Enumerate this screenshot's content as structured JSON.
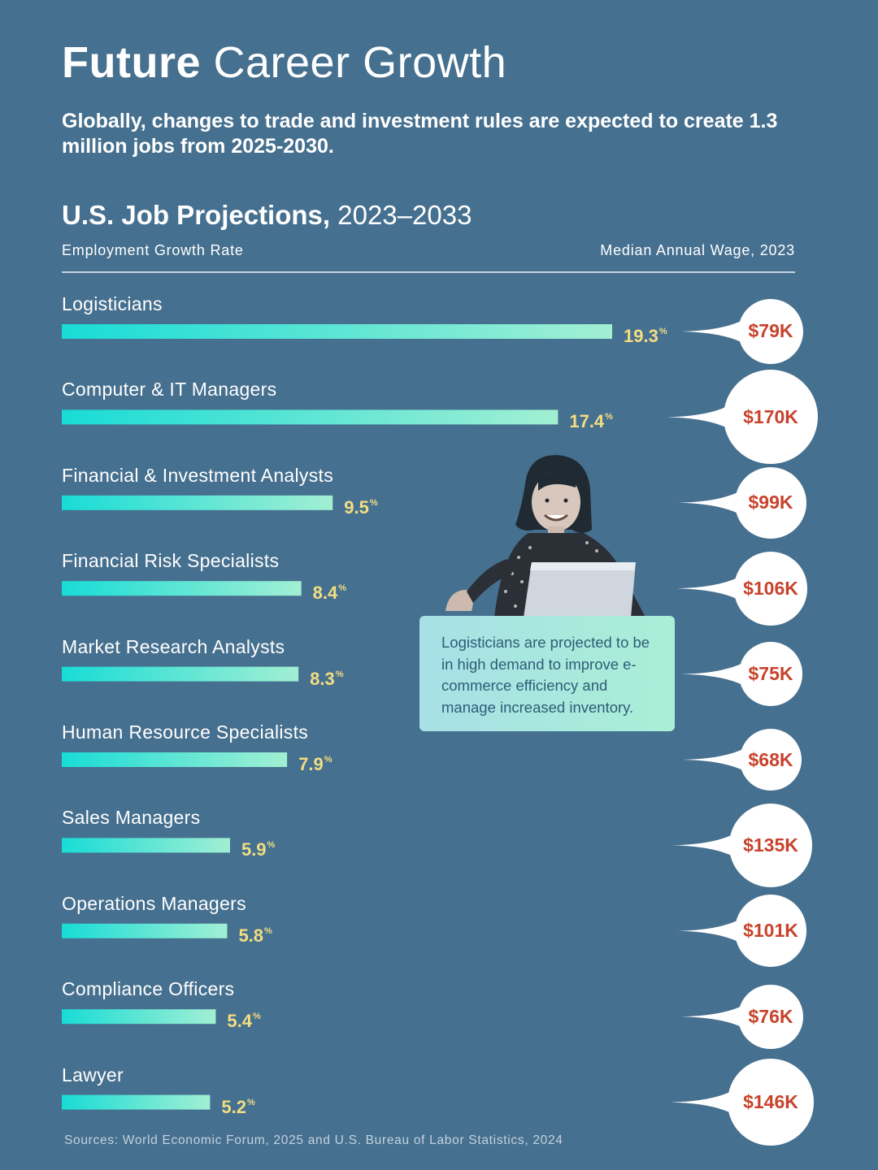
{
  "header": {
    "title_bold": "Future",
    "title_rest": "Career Growth",
    "subtitle": "Globally, changes to trade and investment rules are expected to create 1.3 million jobs from 2025-2030."
  },
  "section": {
    "title_bold": "U.S. Job Projections,",
    "title_years": "2023–2033",
    "left_col_label": "Employment Growth Rate",
    "right_col_label": "Median Annual Wage, 2023"
  },
  "callout": {
    "text": "Logisticians are projected to be in high demand to improve e-commerce efficiency and manage increased inventory."
  },
  "photo": {
    "icon": "woman-with-laptop-photo"
  },
  "source": "Sources: World Economic Forum, 2025 and U.S. Bureau of Labor Statistics, 2024",
  "colors": {
    "background": "#46708f",
    "bar_start": "#18dcd6",
    "bar_end": "#a2efd3",
    "value_text": "#f3dd82",
    "wage_text": "#c8432c"
  },
  "chart_data": {
    "type": "bar",
    "orientation": "horizontal",
    "title": "U.S. Job Projections, 2023–2033",
    "xlabel": "Employment Growth Rate",
    "ylabel": "",
    "unit": "%",
    "categories": [
      "Logisticians",
      "Computer & IT Managers",
      "Financial & Investment Analysts",
      "Financial Risk Specialists",
      "Market Research Analysts",
      "Human Resource Specialists",
      "Sales Managers",
      "Operations Managers",
      "Compliance Officers",
      "Lawyer"
    ],
    "values": [
      19.3,
      17.4,
      9.5,
      8.4,
      8.3,
      7.9,
      5.9,
      5.8,
      5.4,
      5.2
    ],
    "value_labels": [
      "19.3",
      "17.4",
      "9.5",
      "8.4",
      "8.3",
      "7.9",
      "5.9",
      "5.8",
      "5.4",
      "5.2"
    ],
    "secondary_label": "Median Annual Wage, 2023",
    "wages": [
      79,
      170,
      99,
      106,
      75,
      68,
      135,
      101,
      76,
      146
    ],
    "wage_labels": [
      "$79K",
      "$170K",
      "$99K",
      "$106K",
      "$75K",
      "$68K",
      "$135K",
      "$101K",
      "$76K",
      "$146K"
    ],
    "xlim": [
      0,
      19.3
    ]
  }
}
